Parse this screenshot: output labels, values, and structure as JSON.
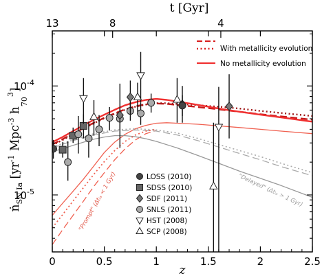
{
  "chart_data": {
    "type": "line",
    "xlabel": "z",
    "ylabel": "n SN Ia [yr⁻¹ Mpc⁻³ h₇₀³]",
    "ylabel_parts": {
      "main": "ṅ",
      "sub": "SN Ia",
      "bracket_open": "[yr",
      "exp1": "-1",
      "mid": "Mpc",
      "exp2": "-3",
      "h": "h",
      "hsub": "70",
      "exp3": "3",
      "bracket_close": "]"
    },
    "top_axis_label": "t [Gyr]",
    "top_ticks": [
      {
        "label": "13",
        "z": 0.0
      },
      {
        "label": "8",
        "z": 0.58
      },
      {
        "label": "4",
        "z": 1.62
      }
    ],
    "xlim": [
      0,
      2.5
    ],
    "ylim": [
      3e-06,
      0.00032
    ],
    "yscale": "log",
    "x_ticks": [
      {
        "v": 0,
        "label": "0"
      },
      {
        "v": 0.5,
        "label": "0.5"
      },
      {
        "v": 1,
        "label": "1"
      },
      {
        "v": 1.5,
        "label": "1.5"
      },
      {
        "v": 2,
        "label": "2"
      },
      {
        "v": 2.5,
        "label": "2.5"
      }
    ],
    "y_ticks": [
      {
        "v": 1e-05,
        "mant": "10",
        "exp": "-5"
      },
      {
        "v": 0.0001,
        "mant": "10",
        "exp": "-4"
      }
    ],
    "legend_lines": [
      {
        "label": "With metallicity evolution",
        "color": "#d92020",
        "styles": [
          "dashed",
          "dotted"
        ]
      },
      {
        "label": "No metallicity evolution",
        "color": "#f03030",
        "styles": [
          "solid"
        ]
      }
    ],
    "legend_markers": [
      {
        "label": "LOSS (2010)",
        "marker": "circle",
        "fill": "#444444"
      },
      {
        "label": "SDSS (2010)",
        "marker": "square",
        "fill": "#666666"
      },
      {
        "label": "SDF (2011)",
        "marker": "diamond",
        "fill": "#777777"
      },
      {
        "label": "SNLS (2011)",
        "marker": "circle",
        "fill": "#aaaaaa"
      },
      {
        "label": "HST (2008)",
        "marker": "tri-down",
        "fill": "#ffffff"
      },
      {
        "label": "SCP (2008)",
        "marker": "tri-up",
        "fill": "#ffffff"
      }
    ],
    "annotations": [
      {
        "name": "prompt-label",
        "text": "\"Prompt\" (Δtᵢₐ < 1 Gyr)",
        "color": "#e05040"
      },
      {
        "name": "delayed-label",
        "text": "\"Delayed\" (Δtᵢₐ > 1 Gyr)",
        "color": "#999999"
      }
    ],
    "series": [
      {
        "name": "With metallicity evolution (dashed)",
        "color": "#c41a1a",
        "style": "dashed",
        "width": 2.4,
        "x": [
          0,
          0.1,
          0.2,
          0.3,
          0.4,
          0.5,
          0.6,
          0.7,
          0.8,
          0.9,
          1.0,
          1.1,
          1.2,
          1.3,
          1.4,
          1.5,
          1.6,
          1.8,
          2.0,
          2.2,
          2.5
        ],
        "y": [
          2.9e-05,
          3.25e-05,
          3.65e-05,
          4.1e-05,
          4.6e-05,
          5.1e-05,
          5.6e-05,
          6.1e-05,
          6.5e-05,
          6.8e-05,
          6.9e-05,
          6.85e-05,
          6.7e-05,
          6.55e-05,
          6.4e-05,
          6.25e-05,
          6.1e-05,
          5.8e-05,
          5.5e-05,
          5.25e-05,
          4.9e-05
        ]
      },
      {
        "name": "With metallicity evolution (dotted)",
        "color": "#a01818",
        "style": "dotted",
        "width": 2.4,
        "x": [
          0,
          0.1,
          0.2,
          0.3,
          0.4,
          0.5,
          0.6,
          0.7,
          0.8,
          0.9,
          1.0,
          1.1,
          1.2,
          1.3,
          1.4,
          1.5,
          1.6,
          1.8,
          2.0,
          2.2,
          2.5
        ],
        "y": [
          2.85e-05,
          3.2e-05,
          3.6e-05,
          4.05e-05,
          4.55e-05,
          5.05e-05,
          5.55e-05,
          6.05e-05,
          6.45e-05,
          6.75e-05,
          6.95e-05,
          6.95e-05,
          6.85e-05,
          6.75e-05,
          6.65e-05,
          6.55e-05,
          6.45e-05,
          6.2e-05,
          5.9e-05,
          5.65e-05,
          5.3e-05
        ]
      },
      {
        "name": "No metallicity evolution",
        "color": "#f03030",
        "style": "solid",
        "width": 2.4,
        "x": [
          0,
          0.1,
          0.2,
          0.3,
          0.4,
          0.5,
          0.6,
          0.7,
          0.8,
          0.9,
          1.0,
          1.1,
          1.2,
          1.3,
          1.4,
          1.5,
          1.6,
          1.8,
          2.0,
          2.2,
          2.5
        ],
        "y": [
          3.05e-05,
          3.4e-05,
          3.85e-05,
          4.35e-05,
          4.9e-05,
          5.45e-05,
          6.05e-05,
          6.65e-05,
          7.1e-05,
          7.45e-05,
          7.6e-05,
          7.45e-05,
          7.2e-05,
          6.95e-05,
          6.7e-05,
          6.45e-05,
          6.2e-05,
          5.8e-05,
          5.45e-05,
          5.15e-05,
          4.7e-05
        ]
      },
      {
        "name": "No metallicity evolution prompt",
        "color": "#f06050",
        "style": "solid",
        "width": 1.3,
        "x": [
          0,
          0.1,
          0.2,
          0.3,
          0.4,
          0.5,
          0.6,
          0.7,
          0.8,
          0.9,
          1.0,
          1.1,
          1.2,
          1.4,
          1.6,
          1.8,
          2.0,
          2.2,
          2.5
        ],
        "y": [
          6.5e-06,
          8.4e-06,
          1.08e-05,
          1.4e-05,
          1.85e-05,
          2.45e-05,
          3.05e-05,
          3.6e-05,
          4.05e-05,
          4.35e-05,
          4.55e-05,
          4.6e-05,
          4.55e-05,
          4.45e-05,
          4.3e-05,
          4.15e-05,
          4e-05,
          3.85e-05,
          3.65e-05
        ]
      },
      {
        "name": "With metallicity evolution prompt (dashed)",
        "color": "#f06050",
        "style": "dashed",
        "width": 1.3,
        "x": [
          0,
          0.1,
          0.2,
          0.3,
          0.4,
          0.5,
          0.6,
          0.7,
          0.8,
          0.9,
          1.0
        ],
        "y": [
          3.5e-06,
          4.8e-06,
          6.5e-06,
          8.8e-06,
          1.2e-05,
          1.6e-05,
          2.1e-05,
          2.65e-05,
          3.2e-05,
          3.65e-05,
          3.9e-05
        ]
      },
      {
        "name": "With metallicity evolution prompt (dotted)",
        "color": "#f06050",
        "style": "dotted",
        "width": 1.8,
        "x": [
          0,
          0.1,
          0.2,
          0.3,
          0.4,
          0.5,
          0.6,
          0.7,
          0.8,
          0.9,
          1.0
        ],
        "y": [
          5e-06,
          6.6e-06,
          8.8e-06,
          1.17e-05,
          1.55e-05,
          2.02e-05,
          2.55e-05,
          3.1e-05,
          3.55e-05,
          3.85e-05,
          4e-05
        ]
      },
      {
        "name": "No metallicity evolution delayed",
        "color": "#999999",
        "style": "solid",
        "width": 1.3,
        "x": [
          0,
          0.1,
          0.2,
          0.3,
          0.4,
          0.5,
          0.6,
          0.7,
          0.8,
          0.9,
          1.0,
          1.2,
          1.4,
          1.6,
          1.8,
          2.0,
          2.2,
          2.5
        ],
        "y": [
          2.5e-05,
          2.65e-05,
          2.85e-05,
          3.05e-05,
          3.25e-05,
          3.4e-05,
          3.5e-05,
          3.5e-05,
          3.42e-05,
          3.28e-05,
          3.1e-05,
          2.7e-05,
          2.3e-05,
          1.95e-05,
          1.65e-05,
          1.42e-05,
          1.22e-05,
          9.5e-06
        ]
      },
      {
        "name": "With metallicity evolution delayed (dashed)",
        "color": "#aaaaaa",
        "style": "dashed",
        "width": 1.3,
        "x": [
          0,
          0.2,
          0.4,
          0.6,
          0.8,
          1.0,
          1.2,
          1.4,
          1.6,
          1.8,
          2.0,
          2.2,
          2.5
        ],
        "y": [
          2.7e-05,
          3.15e-05,
          3.55e-05,
          3.85e-05,
          3.95e-05,
          3.85e-05,
          3.55e-05,
          3.15e-05,
          2.75e-05,
          2.4e-05,
          2.1e-05,
          1.82e-05,
          1.5e-05
        ]
      },
      {
        "name": "With metallicity evolution delayed (dotted)",
        "color": "#aaaaaa",
        "style": "dotted",
        "width": 1.6,
        "x": [
          0,
          0.2,
          0.4,
          0.6,
          0.8,
          1.0,
          1.2,
          1.4,
          1.6,
          1.8,
          2.0,
          2.2,
          2.5
        ],
        "y": [
          2.75e-05,
          3.2e-05,
          3.65e-05,
          3.95e-05,
          4.05e-05,
          3.95e-05,
          3.7e-05,
          3.3e-05,
          2.9e-05,
          2.55e-05,
          2.25e-05,
          1.95e-05,
          1.6e-05
        ]
      }
    ],
    "points": [
      {
        "survey": "LOSS",
        "marker": "circle",
        "fill": "#444444",
        "x": 0.01,
        "y": 2.65e-05,
        "ylo": 2.15e-05,
        "yhi": 3.2e-05
      },
      {
        "survey": "SDSS",
        "marker": "square",
        "fill": "#666666",
        "x": 0.1,
        "y": 2.6e-05,
        "ylo": 2.2e-05,
        "yhi": 3.05e-05
      },
      {
        "survey": "SDSS",
        "marker": "square",
        "fill": "#666666",
        "x": 0.2,
        "y": 3.5e-05,
        "ylo": 3e-05,
        "yhi": 4.15e-05
      },
      {
        "survey": "SDSS",
        "marker": "square",
        "fill": "#666666",
        "x": 0.3,
        "y": 4.3e-05,
        "ylo": 3.3e-05,
        "yhi": 5.5e-05
      },
      {
        "survey": "SNLS",
        "marker": "circle",
        "fill": "#aaaaaa",
        "x": 0.15,
        "y": 2e-05,
        "ylo": 1.35e-05,
        "yhi": 3.1e-05
      },
      {
        "survey": "SNLS",
        "marker": "circle",
        "fill": "#aaaaaa",
        "x": 0.25,
        "y": 3.6e-05,
        "ylo": 2.4e-05,
        "yhi": 5.3e-05
      },
      {
        "survey": "SNLS",
        "marker": "circle",
        "fill": "#aaaaaa",
        "x": 0.35,
        "y": 3.3e-05,
        "ylo": 2.2e-05,
        "yhi": 4.7e-05
      },
      {
        "survey": "SNLS",
        "marker": "circle",
        "fill": "#aaaaaa",
        "x": 0.45,
        "y": 4e-05,
        "ylo": 2.8e-05,
        "yhi": 5.4e-05
      },
      {
        "survey": "SNLS",
        "marker": "circle",
        "fill": "#aaaaaa",
        "x": 0.55,
        "y": 5.1e-05,
        "ylo": 3.9e-05,
        "yhi": 6.4e-05
      },
      {
        "survey": "SNLS",
        "marker": "circle",
        "fill": "#aaaaaa",
        "x": 0.65,
        "y": 5e-05,
        "ylo": 4e-05,
        "yhi": 6.2e-05
      },
      {
        "survey": "SNLS",
        "marker": "circle",
        "fill": "#aaaaaa",
        "x": 0.75,
        "y": 5.9e-05,
        "ylo": 4.8e-05,
        "yhi": 7.2e-05
      },
      {
        "survey": "SNLS",
        "marker": "circle",
        "fill": "#aaaaaa",
        "x": 0.85,
        "y": 5.6e-05,
        "ylo": 4.4e-05,
        "yhi": 7e-05
      },
      {
        "survey": "SNLS",
        "marker": "circle",
        "fill": "#aaaaaa",
        "x": 0.95,
        "y": 7e-05,
        "ylo": 5.7e-05,
        "yhi": 8.5e-05
      },
      {
        "survey": "SDF",
        "marker": "diamond",
        "fill": "#777777",
        "x": 0.65,
        "y": 5.4e-05,
        "ylo": 2.7e-05,
        "yhi": 0.000105
      },
      {
        "survey": "SDF",
        "marker": "diamond",
        "fill": "#777777",
        "x": 0.75,
        "y": 7.9e-05,
        "ylo": 5.5e-05,
        "yhi": 0.000112
      },
      {
        "survey": "SDF",
        "marker": "diamond",
        "fill": "#777777",
        "x": 1.25,
        "y": 6.8e-05,
        "ylo": 4.6e-05,
        "yhi": 0.0001
      },
      {
        "survey": "SDF",
        "marker": "diamond",
        "fill": "#777777",
        "x": 1.7,
        "y": 6.5e-05,
        "ylo": 3.3e-05,
        "yhi": 0.000128
      },
      {
        "survey": "LOSS",
        "marker": "circle",
        "fill": "#444444",
        "x": 1.25,
        "y": 6.6e-05,
        "ylo": 5.3e-05,
        "yhi": 8.2e-05
      },
      {
        "survey": "HST",
        "marker": "tri-down",
        "fill": "#ffffff",
        "x": 0.3,
        "y": 7.7e-05,
        "ylo": 4.5e-05,
        "yhi": 0.000118
      },
      {
        "survey": "HST",
        "marker": "tri-down",
        "fill": "#ffffff",
        "x": 0.85,
        "y": 0.000125,
        "ylo": 7e-05,
        "yhi": 0.000205
      },
      {
        "survey": "HST",
        "marker": "tri-down",
        "fill": "#ffffff",
        "x": 1.6,
        "y": 4.2e-05,
        "ylo": 2.2e-06,
        "yhi": 9.8e-05
      },
      {
        "survey": "SCP",
        "marker": "tri-up",
        "fill": "#ffffff",
        "x": 0.4,
        "y": 5.2e-05,
        "ylo": 3.5e-05,
        "yhi": 7.4e-05
      },
      {
        "survey": "SCP",
        "marker": "tri-up",
        "fill": "#ffffff",
        "x": 0.82,
        "y": 7.9e-05,
        "ylo": 5.8e-05,
        "yhi": 0.000107
      },
      {
        "survey": "SCP",
        "marker": "tri-up",
        "fill": "#ffffff",
        "x": 1.2,
        "y": 7.5e-05,
        "ylo": 4.6e-05,
        "yhi": 0.000118
      },
      {
        "survey": "SCP",
        "marker": "tri-up",
        "fill": "#ffffff",
        "x": 1.55,
        "y": 1.2e-05,
        "ylo": 2.2e-06,
        "yhi": 4.6e-05
      }
    ]
  }
}
